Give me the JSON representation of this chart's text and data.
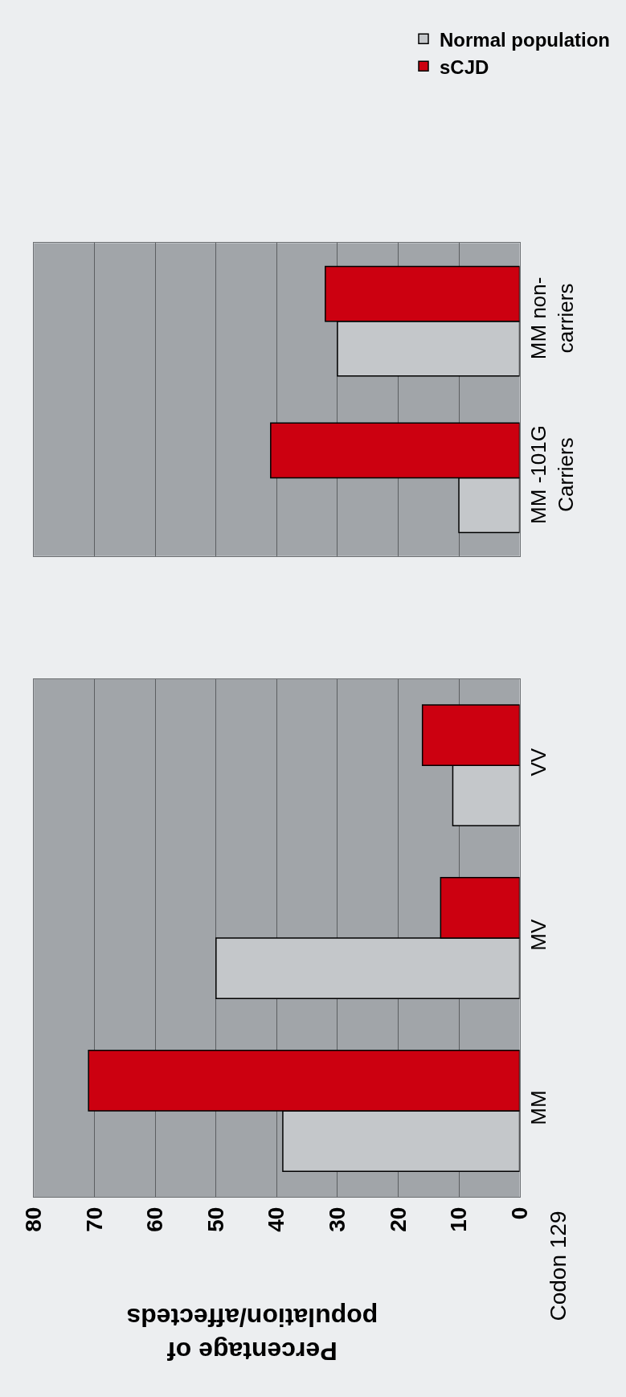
{
  "chart_data": [
    {
      "type": "bar",
      "orientation": "horizontal",
      "categories": [
        "MM non-\ncarriers",
        "MM -101G\nCarriers"
      ],
      "series": [
        {
          "name": "Normal population",
          "color": "#c4c7ca",
          "values": [
            30,
            10
          ]
        },
        {
          "name": "sCJD",
          "color": "#cc0010",
          "values": [
            32,
            41
          ]
        }
      ],
      "xlim": [
        80,
        0
      ],
      "xticks": [
        0,
        10,
        20,
        30,
        40,
        50,
        60,
        70,
        80
      ],
      "tick_labels": "y",
      "grid": "x",
      "legend": "top right"
    },
    {
      "type": "bar",
      "orientation": "horizontal",
      "categories": [
        "VV",
        "MV",
        "MM"
      ],
      "series": [
        {
          "color": "#c4c7ca",
          "values": [
            11,
            50,
            39
          ]
        },
        {
          "color": "#cc0010",
          "values": [
            16,
            13,
            71
          ]
        }
      ],
      "xlabel": "Percentage of\npopulation/affecteds",
      "ylabel": "Codon 129",
      "xlim": [
        80,
        0
      ],
      "xticks": [
        0,
        10,
        20,
        30,
        40,
        50,
        60,
        70,
        80
      ],
      "grid": "x"
    }
  ]
}
